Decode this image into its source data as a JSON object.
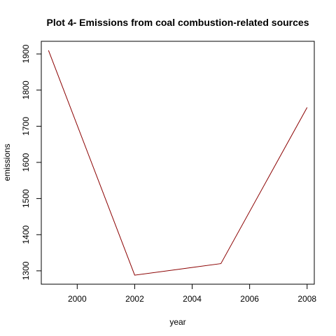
{
  "chart_data": {
    "type": "line",
    "title": "Plot 4- Emissions from coal combustion-related sources",
    "xlabel": "year",
    "ylabel": "emissions",
    "x": [
      1999,
      2002,
      2005,
      2008
    ],
    "series": [
      {
        "values": [
          1910,
          1288,
          1320,
          1752
        ],
        "color": "#8B0000"
      }
    ],
    "xlim": [
      1998.75,
      2008.25
    ],
    "ylim": [
      1263,
      1935
    ],
    "xticks": [
      2000,
      2002,
      2004,
      2006,
      2008
    ],
    "yticks": [
      1300,
      1400,
      1500,
      1600,
      1700,
      1800,
      1900
    ],
    "grid": false,
    "box": true
  }
}
